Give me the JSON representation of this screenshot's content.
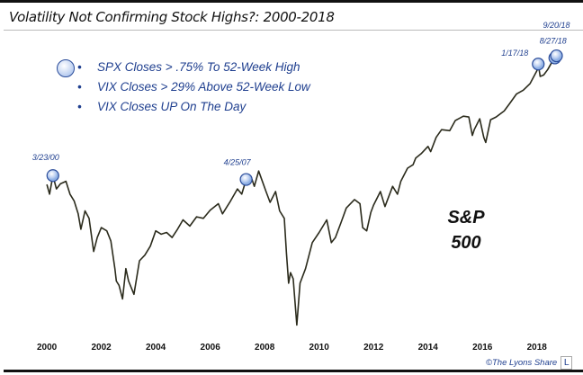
{
  "chart_data": {
    "type": "line",
    "title": "Volatility Not Confirming Stock Highs?: 2000-2018",
    "xlabel": "",
    "ylabel": "",
    "yscale": "log",
    "xlim": [
      1999.6,
      2019.0
    ],
    "ylim": [
      649,
      3265
    ],
    "grid": false,
    "x_ticks": [
      "2000",
      "2002",
      "2004",
      "2006",
      "2008",
      "2010",
      "2012",
      "2014",
      "2016",
      "2018"
    ],
    "series": [
      {
        "name": "S&P 500",
        "color": "#2b2b1c",
        "x": [
          2000.0,
          2000.1,
          2000.22,
          2000.35,
          2000.5,
          2000.7,
          2000.85,
          2001.0,
          2001.15,
          2001.25,
          2001.4,
          2001.55,
          2001.72,
          2001.85,
          2002.0,
          2002.2,
          2002.35,
          2002.5,
          2002.55,
          2002.65,
          2002.78,
          2002.9,
          2003.0,
          2003.2,
          2003.4,
          2003.6,
          2003.8,
          2004.0,
          2004.2,
          2004.4,
          2004.6,
          2004.8,
          2005.0,
          2005.25,
          2005.5,
          2005.75,
          2006.0,
          2006.3,
          2006.45,
          2006.75,
          2007.0,
          2007.16,
          2007.32,
          2007.5,
          2007.62,
          2007.78,
          2007.9,
          2008.05,
          2008.2,
          2008.4,
          2008.55,
          2008.72,
          2008.8,
          2008.88,
          2008.95,
          2009.05,
          2009.18,
          2009.3,
          2009.5,
          2009.75,
          2010.0,
          2010.28,
          2010.45,
          2010.6,
          2010.8,
          2011.0,
          2011.3,
          2011.5,
          2011.6,
          2011.75,
          2011.9,
          2012.0,
          2012.25,
          2012.42,
          2012.7,
          2012.88,
          2013.0,
          2013.25,
          2013.45,
          2013.55,
          2013.75,
          2014.0,
          2014.1,
          2014.3,
          2014.5,
          2014.8,
          2015.0,
          2015.3,
          2015.5,
          2015.63,
          2015.7,
          2015.9,
          2016.05,
          2016.12,
          2016.3,
          2016.5,
          2016.8,
          2017.0,
          2017.25,
          2017.5,
          2017.75,
          2018.0,
          2018.05,
          2018.12,
          2018.25,
          2018.4,
          2018.55,
          2018.66,
          2018.72
        ],
        "values": [
          1455,
          1380,
          1527,
          1420,
          1460,
          1480,
          1380,
          1330,
          1240,
          1140,
          1260,
          1210,
          1010,
          1090,
          1150,
          1130,
          1070,
          920,
          860,
          840,
          780,
          920,
          860,
          800,
          960,
          990,
          1040,
          1130,
          1110,
          1120,
          1090,
          1140,
          1200,
          1160,
          1220,
          1210,
          1265,
          1310,
          1240,
          1330,
          1420,
          1380,
          1495,
          1520,
          1440,
          1565,
          1490,
          1400,
          1320,
          1400,
          1260,
          1210,
          1000,
          850,
          900,
          870,
          677,
          850,
          920,
          1060,
          1120,
          1200,
          1060,
          1090,
          1180,
          1280,
          1340,
          1310,
          1150,
          1130,
          1250,
          1300,
          1400,
          1290,
          1440,
          1380,
          1480,
          1590,
          1620,
          1680,
          1720,
          1790,
          1740,
          1880,
          1960,
          1950,
          2060,
          2110,
          2100,
          1900,
          1960,
          2080,
          1880,
          1829,
          2070,
          2100,
          2170,
          2260,
          2380,
          2430,
          2520,
          2700,
          2802,
          2620,
          2640,
          2720,
          2830,
          2897,
          2931
        ]
      }
    ],
    "markers": [
      {
        "label": "3/23/00",
        "x": 2000.22,
        "value": 1527
      },
      {
        "label": "4/25/07",
        "x": 2007.32,
        "value": 1495
      },
      {
        "label": "1/17/18",
        "x": 2018.05,
        "value": 2802
      },
      {
        "label": "8/27/18",
        "x": 2018.66,
        "value": 2897
      },
      {
        "label": "9/20/18",
        "x": 2018.72,
        "value": 2931
      }
    ],
    "legend": [
      "SPX Closes > .75% To 52-Week High",
      "VIX Closes > 29% Above 52-Week Low",
      "VIX Closes UP On The Day"
    ],
    "annotation": [
      "S&P",
      "500"
    ],
    "source": "©The Lyons Share",
    "logo": "L"
  }
}
